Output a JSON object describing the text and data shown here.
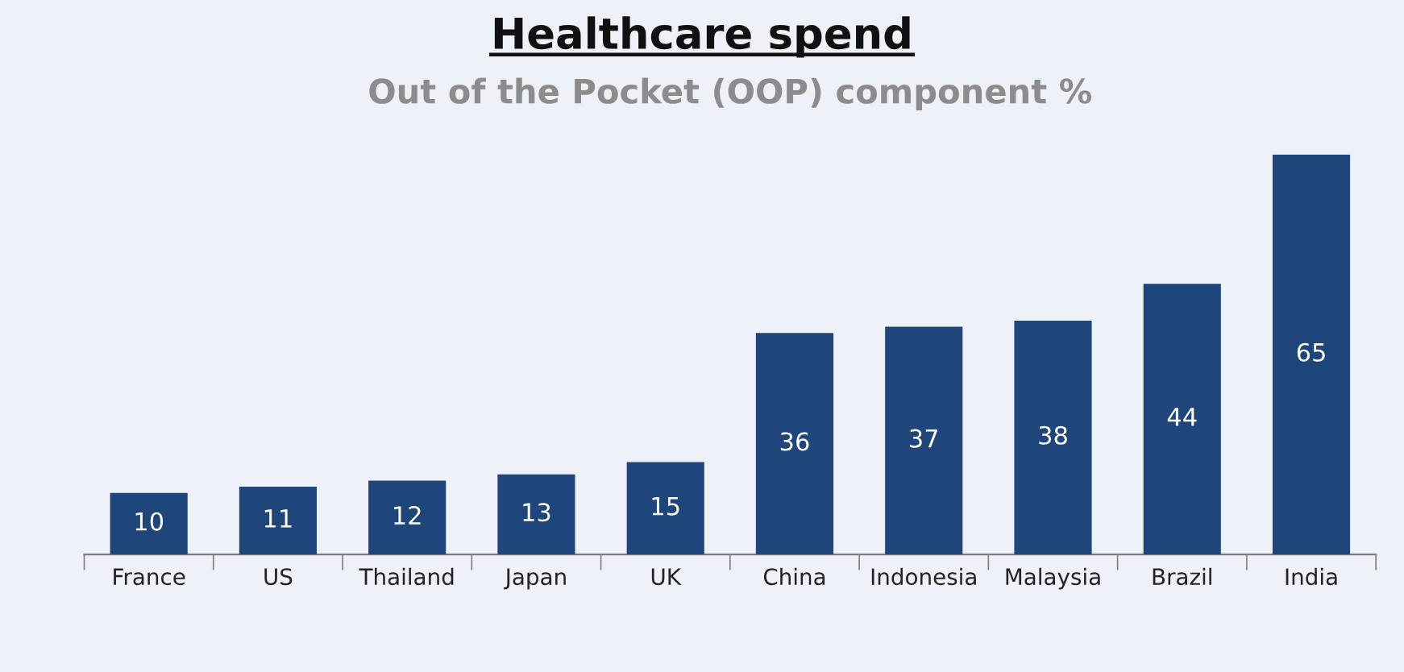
{
  "chart_data": {
    "type": "bar",
    "title": "Healthcare spend",
    "subtitle": "Out of the Pocket (OOP) component %",
    "categories": [
      "France",
      "US",
      "Thailand",
      "Japan",
      "UK",
      "China",
      "Indonesia",
      "Malaysia",
      "Brazil",
      "India"
    ],
    "values": [
      10,
      11,
      12,
      13,
      15,
      36,
      37,
      38,
      44,
      65
    ],
    "color": "#1f467a",
    "data_labels": true,
    "grid": false,
    "legend": false
  }
}
